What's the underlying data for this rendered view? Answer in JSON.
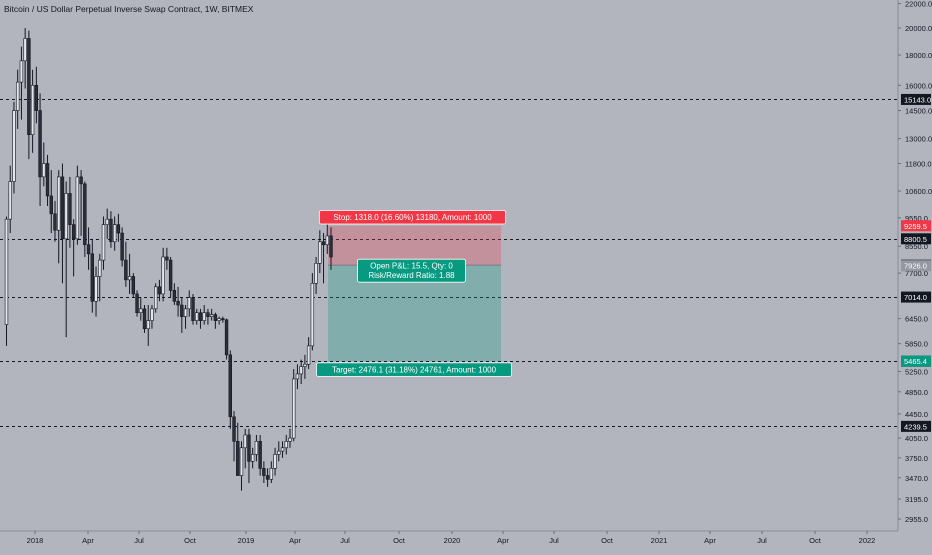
{
  "header": {
    "title": "Bitcoin / US Dollar Perpetual Inverse Swap Contract, 1W, BITMEX"
  },
  "chart_data": {
    "type": "candlestick",
    "symbol": "Bitcoin / US Dollar Perpetual Inverse Swap Contract",
    "interval": "1W",
    "exchange": "BITMEX",
    "y_scale": "log",
    "ylim": [
      2800,
      22500
    ],
    "price_ticks": [
      22000,
      20000,
      18000,
      16000,
      14500,
      13000,
      11800,
      10600,
      9550,
      8550,
      7700,
      6450,
      5850,
      5250,
      4850,
      4450,
      4050,
      3750,
      3470,
      3195,
      2955
    ],
    "time_labels": [
      "2018",
      "Apr",
      "Jul",
      "Oct",
      "2019",
      "Apr",
      "Jul",
      "Oct",
      "2020",
      "Apr",
      "Jul",
      "Oct",
      "2021",
      "Apr",
      "Jul",
      "Oct",
      "2022"
    ],
    "horizontal_levels": [
      {
        "price": 15143.0,
        "label": "15143.0"
      },
      {
        "price": 8800.5,
        "label": "8800.5"
      },
      {
        "price": 7014.0,
        "label": "7014.0"
      },
      {
        "price": 5464.0,
        "label": "5464.0"
      },
      {
        "price": 4239.5,
        "label": "4239.5"
      }
    ],
    "position": {
      "side": "short",
      "entry": 7941.5,
      "stop": 9259.5,
      "target": 5465.4,
      "stop_label": "Stop: 1318.0 (16.60%) 13180, Amount: 1000",
      "target_label": "Target: 2476.1 (31.18%) 24761, Amount: 1000",
      "center_line1": "Open P&L: 15.5, Qty: 0",
      "center_line2": "Risk/Reward Ratio: 1.88"
    },
    "price_badges": [
      {
        "price": 9259.5,
        "label": "9259.5",
        "color": "#f23645"
      },
      {
        "price": 7941.5,
        "label": "7941.5",
        "color": "#131722"
      },
      {
        "price": 7926.0,
        "label": "7926.0",
        "color": "#9598a1"
      },
      {
        "price": 5465.4,
        "label": "5465.4",
        "color": "#089981"
      }
    ],
    "candles": [
      [
        6300,
        9600,
        5800,
        9500
      ],
      [
        9500,
        11700,
        9000,
        11000
      ],
      [
        11000,
        15000,
        10500,
        14500
      ],
      [
        14500,
        17000,
        13500,
        16200
      ],
      [
        16200,
        18600,
        14000,
        17600
      ],
      [
        17600,
        20000,
        15800,
        19200
      ],
      [
        19200,
        19800,
        12000,
        13200
      ],
      [
        13200,
        17000,
        12300,
        16000
      ],
      [
        16000,
        17200,
        13800,
        14500
      ],
      [
        14500,
        15500,
        10000,
        11200
      ],
      [
        11200,
        12800,
        10800,
        11800
      ],
      [
        11800,
        12200,
        10000,
        10400
      ],
      [
        10400,
        11500,
        9000,
        9700
      ],
      [
        9700,
        10200,
        8700,
        9100
      ],
      [
        9100,
        11500,
        8000,
        11200
      ],
      [
        11200,
        11800,
        7400,
        8800
      ],
      [
        8800,
        11000,
        6000,
        10500
      ],
      [
        10500,
        11200,
        8500,
        9300
      ],
      [
        9300,
        9500,
        7600,
        8800
      ],
      [
        8800,
        11700,
        8600,
        11200
      ],
      [
        11200,
        11500,
        8900,
        10900
      ],
      [
        10900,
        11000,
        8200,
        8600
      ],
      [
        8600,
        9200,
        7800,
        8300
      ],
      [
        8300,
        8800,
        6600,
        6900
      ],
      [
        6900,
        7900,
        6500,
        7600
      ],
      [
        7600,
        8300,
        6900,
        8100
      ],
      [
        8100,
        9600,
        7800,
        9300
      ],
      [
        9300,
        9900,
        8800,
        9500
      ],
      [
        9500,
        9800,
        8500,
        8700
      ],
      [
        8700,
        9600,
        8400,
        9300
      ],
      [
        9300,
        9700,
        8700,
        9000
      ],
      [
        9000,
        9200,
        7900,
        8100
      ],
      [
        8100,
        8700,
        7300,
        7500
      ],
      [
        7500,
        8300,
        7100,
        7600
      ],
      [
        7600,
        7700,
        7000,
        7100
      ],
      [
        7100,
        7200,
        6500,
        6600
      ],
      [
        6600,
        7000,
        6400,
        6700
      ],
      [
        6700,
        6800,
        6100,
        6200
      ],
      [
        6200,
        6800,
        5800,
        6400
      ],
      [
        6400,
        6800,
        6200,
        6700
      ],
      [
        6700,
        7400,
        6600,
        7300
      ],
      [
        7300,
        7500,
        6900,
        7100
      ],
      [
        7100,
        8500,
        6900,
        8200
      ],
      [
        8200,
        8500,
        7800,
        8100
      ],
      [
        8100,
        8200,
        7000,
        7200
      ],
      [
        7200,
        7400,
        6800,
        6900
      ],
      [
        6900,
        7300,
        6500,
        6800
      ],
      [
        6800,
        7000,
        6100,
        6500
      ],
      [
        6500,
        6800,
        6200,
        6700
      ],
      [
        6700,
        7200,
        6500,
        7000
      ],
      [
        7000,
        7100,
        6300,
        6400
      ],
      [
        6400,
        6700,
        6300,
        6600
      ],
      [
        6600,
        6700,
        6200,
        6400
      ],
      [
        6400,
        6800,
        6300,
        6600
      ],
      [
        6600,
        6700,
        6300,
        6500
      ],
      [
        6500,
        6700,
        6400,
        6550
      ],
      [
        6550,
        6600,
        6200,
        6400
      ],
      [
        6400,
        6500,
        6300,
        6450
      ],
      [
        6450,
        6500,
        6350,
        6420
      ],
      [
        6420,
        6450,
        5500,
        5600
      ],
      [
        5600,
        5700,
        4200,
        4400
      ],
      [
        4400,
        4500,
        3700,
        4000
      ],
      [
        4000,
        4300,
        3500,
        3500
      ],
      [
        3500,
        4000,
        3300,
        3900
      ],
      [
        3900,
        4200,
        3600,
        4100
      ],
      [
        4100,
        4200,
        3400,
        3700
      ],
      [
        3700,
        3900,
        3600,
        3800
      ],
      [
        3800,
        4100,
        3700,
        4000
      ],
      [
        4000,
        4100,
        3500,
        3600
      ],
      [
        3600,
        3700,
        3400,
        3500
      ],
      [
        3500,
        3600,
        3350,
        3450
      ],
      [
        3450,
        3700,
        3400,
        3600
      ],
      [
        3600,
        3900,
        3500,
        3800
      ],
      [
        3800,
        4000,
        3700,
        3850
      ],
      [
        3850,
        4000,
        3750,
        3900
      ],
      [
        3900,
        4100,
        3800,
        4000
      ],
      [
        4000,
        4200,
        3900,
        4050
      ],
      [
        4050,
        5300,
        4000,
        5100
      ],
      [
        5100,
        5400,
        4900,
        5200
      ],
      [
        5200,
        5500,
        5000,
        5350
      ],
      [
        5350,
        5600,
        5100,
        5400
      ],
      [
        5400,
        6000,
        5300,
        5800
      ],
      [
        5800,
        7700,
        5700,
        7400
      ],
      [
        7400,
        8200,
        7100,
        8000
      ],
      [
        8000,
        9100,
        7700,
        8700
      ],
      [
        8700,
        9000,
        7400,
        8600
      ],
      [
        8600,
        9300,
        8300,
        8900
      ],
      [
        8900,
        9200,
        7800,
        8200
      ]
    ]
  }
}
